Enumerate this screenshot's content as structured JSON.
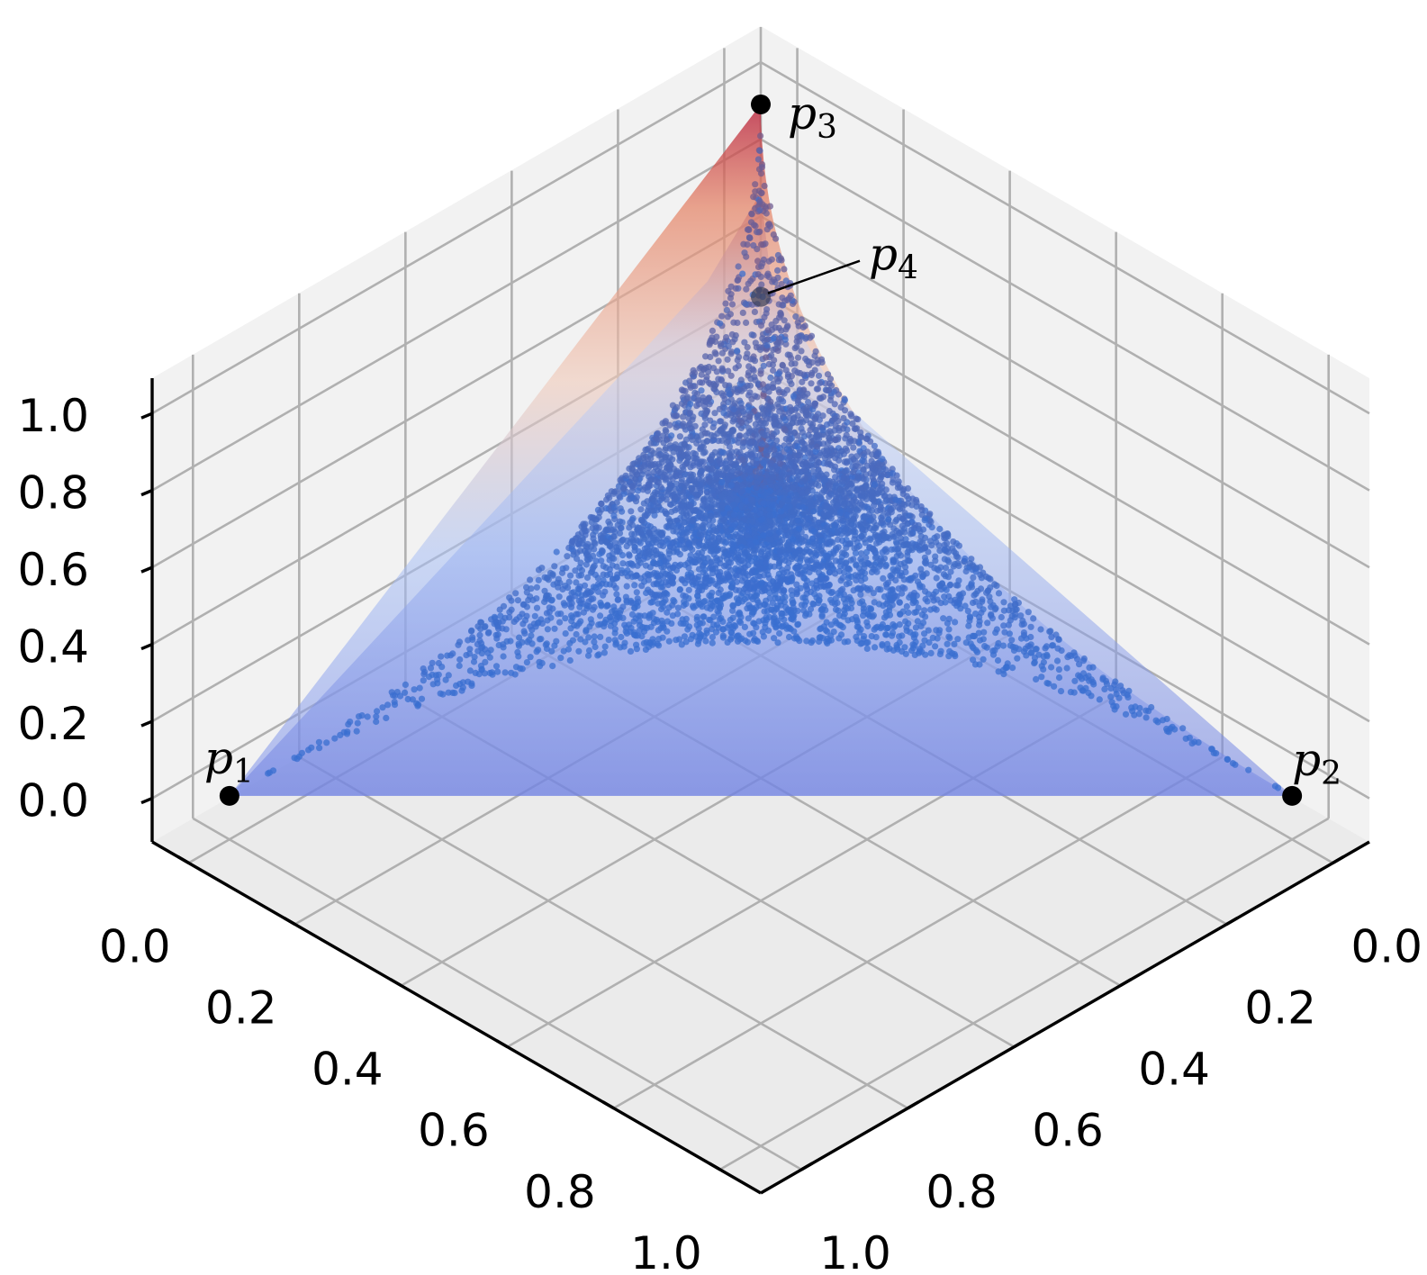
{
  "chart_data": {
    "type": "scatter",
    "projection": "3d",
    "title": "",
    "xlabel": "",
    "ylabel": "",
    "zlabel": "",
    "grid": true,
    "xlim": [
      0,
      1
    ],
    "ylim": [
      0,
      1
    ],
    "zlim": [
      0,
      1
    ],
    "x_ticks": [
      "0.0",
      "0.2",
      "0.4",
      "0.6",
      "0.8",
      "1.0"
    ],
    "y_ticks": [
      "0.0",
      "0.2",
      "0.4",
      "0.6",
      "0.8",
      "1.0"
    ],
    "z_ticks": [
      "0.0",
      "0.2",
      "0.4",
      "0.6",
      "0.8",
      "1.0"
    ],
    "points": [
      {
        "name": "p",
        "sub": "1",
        "x": 1,
        "y": 0,
        "z": 0
      },
      {
        "name": "p",
        "sub": "2",
        "x": 0,
        "y": 1,
        "z": 0
      },
      {
        "name": "p",
        "sub": "3",
        "x": 0,
        "y": 0,
        "z": 1
      },
      {
        "name": "p",
        "sub": "4",
        "x": 0,
        "y": 0,
        "z": 0.5
      }
    ],
    "scatter": {
      "count": 6000,
      "color": "#3a6fd0",
      "region": "x^a + y^a + z^a <= 1 (a = 0.5)"
    },
    "surface_colormap": [
      "#3b4cc0",
      "#b40426"
    ],
    "colors": {
      "pane_side": "#f2f2f2",
      "pane_floor": "#ebebeb",
      "grid": "#b0b0b0",
      "point": "#000000"
    }
  }
}
